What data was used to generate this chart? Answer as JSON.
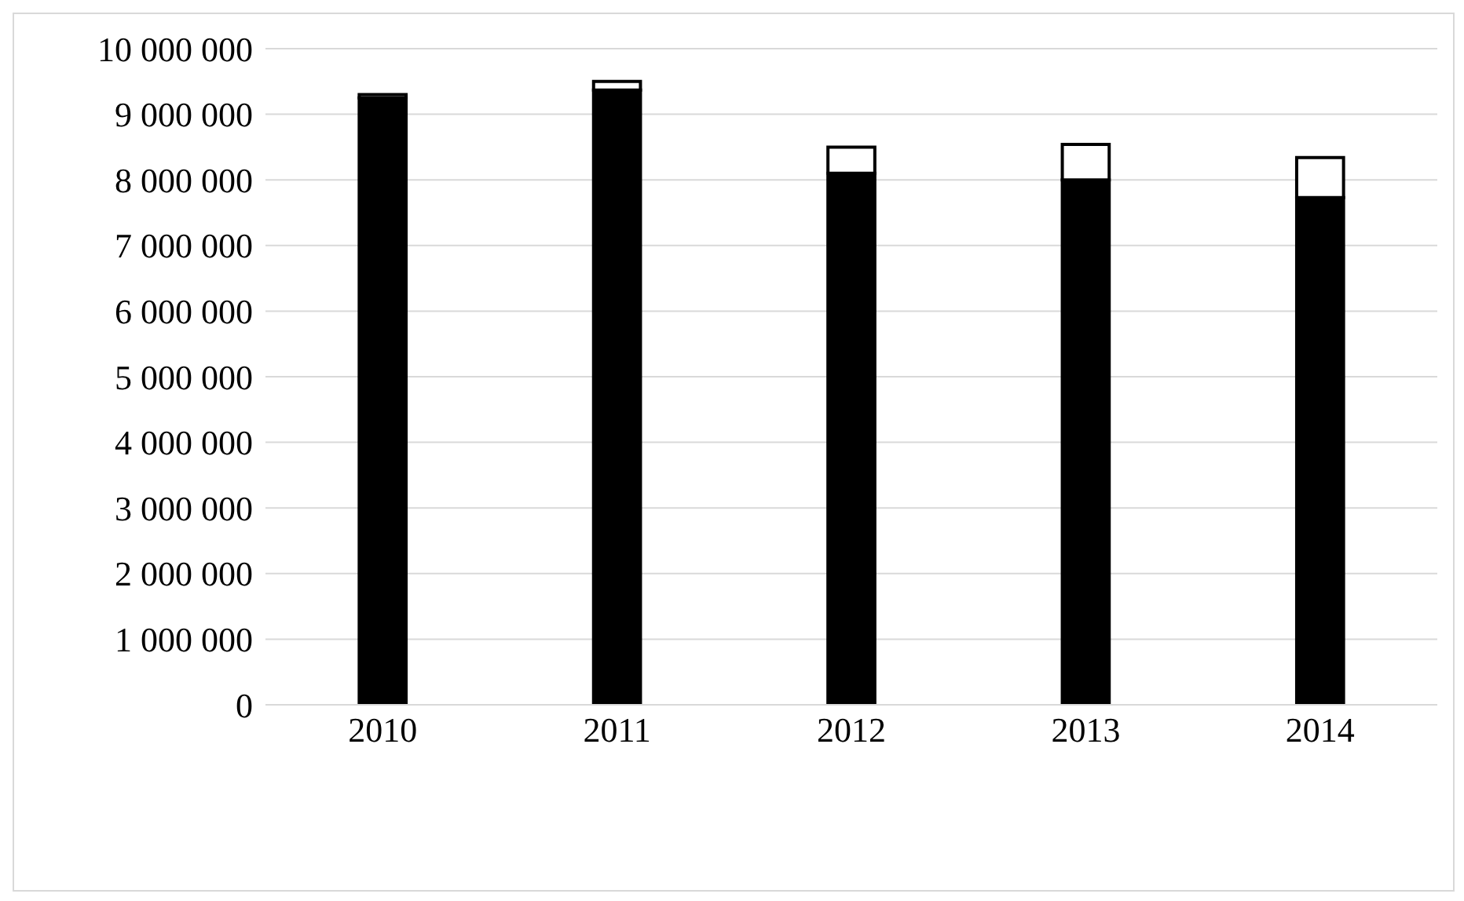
{
  "chart_data": {
    "type": "bar",
    "stacked": true,
    "categories": [
      "2010",
      "2011",
      "2012",
      "2013",
      "2014"
    ],
    "series": [
      {
        "color": "#000000",
        "values": [
          9250000,
          9370000,
          8100000,
          8000000,
          7730000
        ]
      },
      {
        "color": "#ffffff",
        "values": [
          50000,
          130000,
          400000,
          540000,
          610000
        ]
      }
    ],
    "ylim": [
      0,
      10000000
    ],
    "yticks": [
      {
        "value": 0,
        "label": "0"
      },
      {
        "value": 1000000,
        "label": "1 000 000"
      },
      {
        "value": 2000000,
        "label": "2 000 000"
      },
      {
        "value": 3000000,
        "label": "3 000 000"
      },
      {
        "value": 4000000,
        "label": "4 000 000"
      },
      {
        "value": 5000000,
        "label": "5 000 000"
      },
      {
        "value": 6000000,
        "label": "6 000 000"
      },
      {
        "value": 7000000,
        "label": "7 000 000"
      },
      {
        "value": 8000000,
        "label": "8 000 000"
      },
      {
        "value": 9000000,
        "label": "9 000 000"
      },
      {
        "value": 10000000,
        "label": "10 000 000"
      }
    ],
    "grid": "y"
  }
}
